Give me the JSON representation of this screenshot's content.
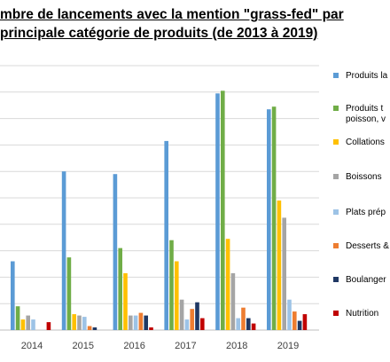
{
  "chart_data": {
    "type": "bar",
    "title_lines": [
      "mbre de lancements avec la mention \"grass-fed\" par",
      "principale catégorie de produits (de 2013 à 2019)"
    ],
    "categories": [
      "2014",
      "2015",
      "2016",
      "2017",
      "2018",
      "2019"
    ],
    "series": [
      {
        "name": "Produits la",
        "color": "#5b9bd5",
        "values": [
          52,
          120,
          118,
          143,
          179,
          167
        ]
      },
      {
        "name": "Produits t\npoisson, v",
        "color": "#70ad47",
        "values": [
          18,
          55,
          62,
          68,
          181,
          169
        ]
      },
      {
        "name": "Collations",
        "color": "#ffc000",
        "values": [
          8,
          12,
          43,
          52,
          69,
          98
        ]
      },
      {
        "name": "Boissons",
        "color": "#a5a5a5",
        "values": [
          11,
          11,
          11,
          23,
          43,
          85
        ]
      },
      {
        "name": "Plats prép",
        "color": "#9dc3e6",
        "values": [
          8,
          10,
          11,
          8,
          9,
          23
        ]
      },
      {
        "name": "Desserts &",
        "color": "#ed7d31",
        "values": [
          0,
          3,
          13,
          16,
          17,
          14
        ]
      },
      {
        "name": "Boulanger",
        "color": "#1f3864",
        "values": [
          0,
          2,
          11,
          21,
          9,
          7
        ]
      },
      {
        "name": "Nutrition",
        "color": "#c00000",
        "values": [
          6,
          0,
          2,
          9,
          5,
          12
        ]
      }
    ],
    "ylim": [
      0,
      200
    ],
    "grid": true,
    "legend_position": "right"
  }
}
